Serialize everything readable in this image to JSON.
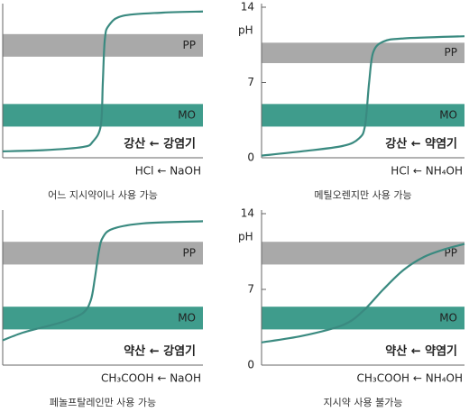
{
  "chart_data": [
    {
      "type": "line",
      "annotation": "강산 ← 강염기",
      "formula": "HCl ← NaOH",
      "caption": "어느 지시약이나 사용 가능",
      "x": [
        0,
        2,
        4,
        4.5,
        4.9,
        5.0,
        5.1,
        5.3,
        6,
        8,
        10
      ],
      "values": [
        0.6,
        0.7,
        1.0,
        1.5,
        3,
        7,
        11,
        12.3,
        13.2,
        13.5,
        13.6
      ],
      "color": "#3a8a80",
      "xlim": [
        0,
        10
      ],
      "ylim": [
        0,
        14
      ],
      "bands": [
        {
          "label": "PP",
          "from": 9.4,
          "to": 11.5,
          "color": "#a9a9a9"
        },
        {
          "label": "MO",
          "from": 2.9,
          "to": 5.0,
          "color": "#3f9c8c"
        }
      ]
    },
    {
      "type": "line",
      "annotation": "강산 ← 약염기",
      "formula": "HCl ← NH₄OH",
      "caption": "메틸오렌지만 사용 가능",
      "ylabel": "pH",
      "x": [
        0,
        2,
        4,
        4.8,
        5.1,
        5.3,
        5.5,
        6,
        7,
        10
      ],
      "values": [
        0.2,
        0.6,
        1.1,
        1.8,
        3,
        7,
        9.8,
        10.8,
        11.1,
        11.3
      ],
      "color": "#3a8a80",
      "xlim": [
        0,
        10
      ],
      "ylim": [
        0,
        14
      ],
      "yticks": [
        0,
        7,
        14
      ],
      "bands": [
        {
          "label": "PP",
          "from": 8.8,
          "to": 10.7,
          "color": "#a9a9a9"
        },
        {
          "label": "MO",
          "from": 2.9,
          "to": 5.0,
          "color": "#3f9c8c"
        }
      ]
    },
    {
      "type": "line",
      "annotation": "약산 ← 강염기",
      "formula": "CH₃COOH ← NaOH",
      "caption": "페놀프탈레인만 사용 가능",
      "x": [
        0,
        1,
        2,
        3,
        4,
        4.4,
        4.6,
        4.8,
        5.0,
        5.5,
        7,
        10
      ],
      "values": [
        2.3,
        3.0,
        3.5,
        4.0,
        4.8,
        6,
        8,
        10.5,
        11.8,
        12.6,
        13.1,
        13.3
      ],
      "color": "#3a8a80",
      "xlim": [
        0,
        10
      ],
      "ylim": [
        0,
        14
      ],
      "bands": [
        {
          "label": "PP",
          "from": 9.3,
          "to": 11.4,
          "color": "#a9a9a9"
        },
        {
          "label": "MO",
          "from": 3.3,
          "to": 5.4,
          "color": "#3f9c8c"
        }
      ]
    },
    {
      "type": "line",
      "annotation": "약산 ← 약염기",
      "formula": "CH₃COOH ← NH₄OH",
      "caption": "지시약 사용 불가능",
      "ylabel": "pH",
      "x": [
        0,
        2,
        4,
        5,
        6,
        7,
        8,
        9,
        10
      ],
      "values": [
        2.1,
        2.7,
        3.7,
        5.0,
        7.0,
        8.8,
        10.0,
        10.7,
        11.2
      ],
      "color": "#3a8a80",
      "xlim": [
        0,
        10
      ],
      "ylim": [
        0,
        14
      ],
      "yticks": [
        0,
        7,
        14
      ],
      "bands": [
        {
          "label": "PP",
          "from": 9.3,
          "to": 11.4,
          "color": "#a9a9a9"
        },
        {
          "label": "MO",
          "from": 3.3,
          "to": 5.4,
          "color": "#3f9c8c"
        }
      ]
    }
  ]
}
